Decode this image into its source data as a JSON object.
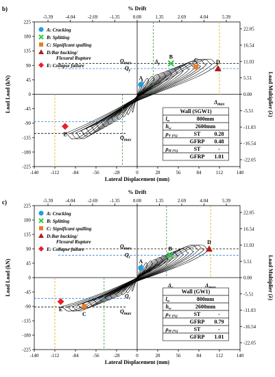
{
  "colors": {
    "blue": "#1f9fe0",
    "green": "#2ecc40",
    "orange": "#e87d2a",
    "darkred": "#b01c1c",
    "red": "#e8202a",
    "yellow": "#e8a800",
    "dash_blue": "#2a7fd4",
    "dash_green": "#3c8f3c",
    "dash_black": "#000000"
  },
  "chart_data": [
    {
      "type": "line",
      "panel_label": "b)",
      "top_axis_label": "% Drift",
      "top_ticks": [
        "-5.39",
        "-4.04",
        "-2.69",
        "-1.35",
        "0.00",
        "1.35",
        "2.69",
        "4.04",
        "5.39"
      ],
      "xlabel": "Lateral Displacement (mm)",
      "ylabel": "Load Load (kN)",
      "y2label": "Load Multiplier (λ)",
      "xlim": [
        -140,
        140
      ],
      "ylim": [
        -225,
        225
      ],
      "x_ticks": [
        "-140",
        "-112",
        "-84",
        "-56",
        "-28",
        "0",
        "28",
        "56",
        "84",
        "112",
        "140"
      ],
      "y_ticks": [
        "225",
        "180",
        "135",
        "90",
        "45",
        "0",
        "-45",
        "-90",
        "-135",
        "-180",
        "-225"
      ],
      "y2_ticks": [
        "22.05",
        "16.54",
        "11.03",
        "5.51",
        "0.00",
        "-5.51",
        "-11.03",
        "-16.54",
        "-22.05"
      ],
      "legend": [
        "A: Cracking",
        "B: Splitting",
        "C: Significant spalling",
        "D:Bar bucking/",
        "Flexural Rupture",
        "E: Collapse failure"
      ],
      "points": [
        {
          "label": "A",
          "x": 5,
          "y": 30,
          "marker": "circle",
          "color": "blue"
        },
        {
          "label": "B",
          "x": 46,
          "y": 96,
          "marker": "x",
          "color": "green"
        },
        {
          "label": "C",
          "x": 80,
          "y": 85,
          "marker": "square",
          "color": "orange"
        },
        {
          "label": "D",
          "x": 110,
          "y": 80,
          "marker": "triangle",
          "color": "darkred"
        },
        {
          "label": "E",
          "x": -98,
          "y": -100,
          "marker": "diamond",
          "color": "red"
        }
      ],
      "annotations": {
        "qmax_pos": "Q",
        "qmax_pos_sub": "max",
        "qy": "Q",
        "qy_sub": "y",
        "qmax_neg": "Q",
        "qmax_neg_sub": "max",
        "delta_y": "Δ",
        "delta_y_sub": "y",
        "delta_max": "Δ",
        "delta_max_sub": "max"
      },
      "table": {
        "title": "Wall (SGW1)",
        "rows": [
          [
            "l",
            "w",
            "800mm",
            ""
          ],
          [
            "h",
            "w",
            "2600mm",
            ""
          ],
          [
            "ρ",
            "V (%)",
            "ST",
            "0.28"
          ],
          [
            "",
            "",
            "GFRP",
            "0.48"
          ],
          [
            "ρ",
            "H (%)",
            "ST",
            "-"
          ],
          [
            "",
            "",
            "GFRP",
            "1.01"
          ]
        ]
      }
    },
    {
      "type": "line",
      "panel_label": "c)",
      "top_axis_label": "% Drift",
      "top_ticks": [
        "-5.39",
        "-4.04",
        "-2.69",
        "-1.35",
        "0.00",
        "1.35",
        "2.69",
        "4.04",
        "5.39"
      ],
      "xlabel": "Lateral Displacement (mm)",
      "ylabel": "Load Load (kN)",
      "y2label": "Load Multiplier (λ)",
      "xlim": [
        -140,
        140
      ],
      "ylim": [
        -225,
        225
      ],
      "x_ticks": [
        "-140",
        "-112",
        "-84",
        "-56",
        "-28",
        "0",
        "28",
        "56",
        "84",
        "112",
        "140"
      ],
      "y_ticks": [
        "225",
        "180",
        "135",
        "90",
        "45",
        "0",
        "-45",
        "-90",
        "-135",
        "-180",
        "-225"
      ],
      "y2_ticks": [
        "22.05",
        "16.54",
        "11.03",
        "5.51",
        "0.00",
        "-5.51",
        "-11.03",
        "-16.54",
        "-22.05"
      ],
      "legend": [
        "A: Cracking",
        "B: Splitting",
        "C: Significant spalling",
        "D:Bar bucking/",
        "Flexural Rupture",
        "E: Collapse failure"
      ],
      "points": [
        {
          "label": "A",
          "x": 5,
          "y": 30,
          "marker": "circle",
          "color": "blue"
        },
        {
          "label": "B",
          "x": 45,
          "y": 70,
          "marker": "x",
          "color": "green"
        },
        {
          "label": "C",
          "x": -72,
          "y": -90,
          "marker": "square",
          "color": "orange"
        },
        {
          "label": "D",
          "x": 98,
          "y": 90,
          "marker": "triangle",
          "color": "darkred"
        },
        {
          "label": "E",
          "x": -104,
          "y": -75,
          "marker": "diamond",
          "color": "red"
        }
      ],
      "annotations": {
        "qmax_pos": "Q",
        "qmax_pos_sub": "max",
        "qy": "Q",
        "qy_sub": "c",
        "qmax_neg": "Q",
        "qmax_neg_sub": "max",
        "delta_y": "Δ",
        "delta_y_sub": "c",
        "delta_max": "Δ",
        "delta_max_sub": "max"
      },
      "table": {
        "title": "Wall (GW1)",
        "rows": [
          [
            "l",
            "w",
            "800mm",
            ""
          ],
          [
            "h",
            "w",
            "2600mm",
            ""
          ],
          [
            "ρ",
            "V (%)",
            "ST",
            "-"
          ],
          [
            "",
            "",
            "GFRP",
            "0.79"
          ],
          [
            "ρ",
            "H (%)",
            "ST",
            "-"
          ],
          [
            "",
            "",
            "GFRP",
            "1.01"
          ]
        ]
      }
    }
  ]
}
